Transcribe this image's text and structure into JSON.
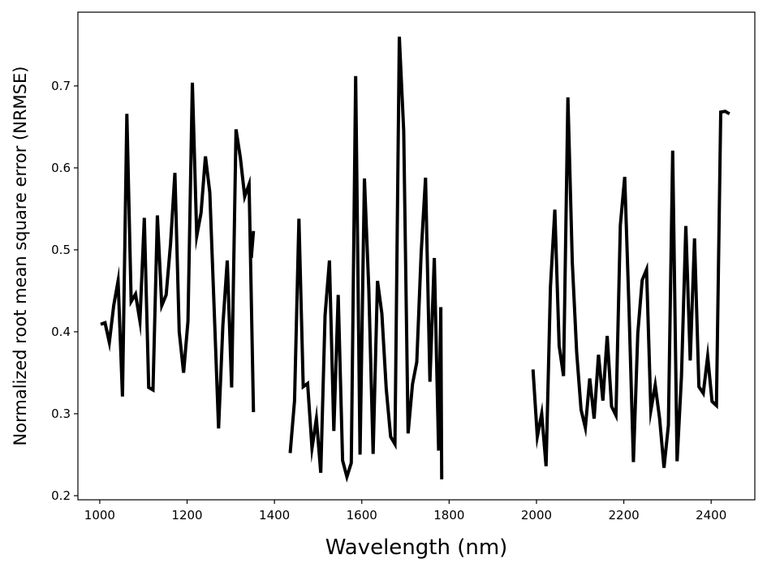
{
  "chart_data": {
    "type": "line",
    "title": "",
    "xlabel": "Wavelength (nm)",
    "ylabel": "Normalized root mean square error (NRMSE)",
    "xlim": [
      950,
      2500
    ],
    "ylim": [
      0.195,
      0.79
    ],
    "xticks": [
      1000,
      1200,
      1400,
      1600,
      1800,
      2000,
      2200,
      2400
    ],
    "yticks": [
      0.2,
      0.3,
      0.4,
      0.5,
      0.6,
      0.7
    ],
    "xtick_labels": [
      "1000",
      "1200",
      "1400",
      "1600",
      "1800",
      "2000",
      "2200",
      "2400"
    ],
    "ytick_labels": [
      "0.2",
      "0.3",
      "0.4",
      "0.5",
      "0.6",
      "0.7"
    ],
    "grid": false,
    "line_color": "#000000",
    "segments": [
      {
        "x": [
          1002,
          1012,
          1022,
          1032,
          1042,
          1052,
          1062,
          1072,
          1082,
          1092,
          1102,
          1112,
          1122,
          1132,
          1142,
          1152,
          1162,
          1172,
          1182,
          1192,
          1202,
          1212,
          1222,
          1232,
          1242,
          1252,
          1262,
          1272,
          1282,
          1292,
          1302,
          1312,
          1322,
          1332,
          1342,
          1352
        ],
        "y": [
          0.409,
          0.411,
          0.387,
          0.432,
          0.462,
          0.321,
          0.666,
          0.437,
          0.446,
          0.413,
          0.539,
          0.332,
          0.329,
          0.542,
          0.432,
          0.445,
          0.507,
          0.594,
          0.4,
          0.35,
          0.413,
          0.704,
          0.517,
          0.545,
          0.614,
          0.57,
          0.427,
          0.282,
          0.408,
          0.487,
          0.332,
          0.647,
          0.612,
          0.565,
          0.58,
          0.302
        ]
      },
      {
        "x": [
          1347,
          1352
        ],
        "y": [
          0.49,
          0.523
        ]
      },
      {
        "x": [
          1436,
          1446,
          1456,
          1466,
          1476,
          1486,
          1496,
          1506,
          1516,
          1526,
          1536,
          1546,
          1556,
          1566,
          1576,
          1586,
          1596,
          1606,
          1616,
          1626,
          1636,
          1646,
          1656,
          1666,
          1676,
          1686,
          1696,
          1706,
          1716,
          1726,
          1736,
          1746,
          1756,
          1766,
          1776,
          1781
        ],
        "y": [
          0.252,
          0.316,
          0.538,
          0.333,
          0.337,
          0.258,
          0.294,
          0.228,
          0.42,
          0.487,
          0.279,
          0.445,
          0.243,
          0.223,
          0.24,
          0.712,
          0.25,
          0.587,
          0.452,
          0.251,
          0.462,
          0.422,
          0.33,
          0.272,
          0.263,
          0.76,
          0.645,
          0.276,
          0.336,
          0.363,
          0.496,
          0.588,
          0.339,
          0.49,
          0.255,
          0.43
        ]
      },
      {
        "x": [
          1781,
          1783
        ],
        "y": [
          0.43,
          0.22
        ]
      },
      {
        "x": [
          1992,
          2002,
          2012,
          2022,
          2032,
          2042,
          2052,
          2062,
          2072,
          2082,
          2092,
          2102,
          2112,
          2122,
          2132,
          2142,
          2152,
          2162,
          2172,
          2182,
          2192,
          2202,
          2212,
          2222,
          2232,
          2242,
          2252,
          2262,
          2272,
          2282,
          2292,
          2302,
          2312,
          2322,
          2332,
          2342,
          2352,
          2362,
          2372,
          2382,
          2392,
          2402,
          2412,
          2422,
          2432,
          2442
        ],
        "y": [
          0.354,
          0.272,
          0.3,
          0.236,
          0.455,
          0.549,
          0.383,
          0.346,
          0.686,
          0.485,
          0.375,
          0.305,
          0.283,
          0.343,
          0.294,
          0.372,
          0.316,
          0.395,
          0.309,
          0.298,
          0.53,
          0.589,
          0.428,
          0.241,
          0.398,
          0.463,
          0.476,
          0.304,
          0.335,
          0.294,
          0.234,
          0.286,
          0.621,
          0.242,
          0.345,
          0.529,
          0.365,
          0.514,
          0.333,
          0.325,
          0.37,
          0.315,
          0.31,
          0.668,
          0.669,
          0.666
        ]
      }
    ]
  }
}
